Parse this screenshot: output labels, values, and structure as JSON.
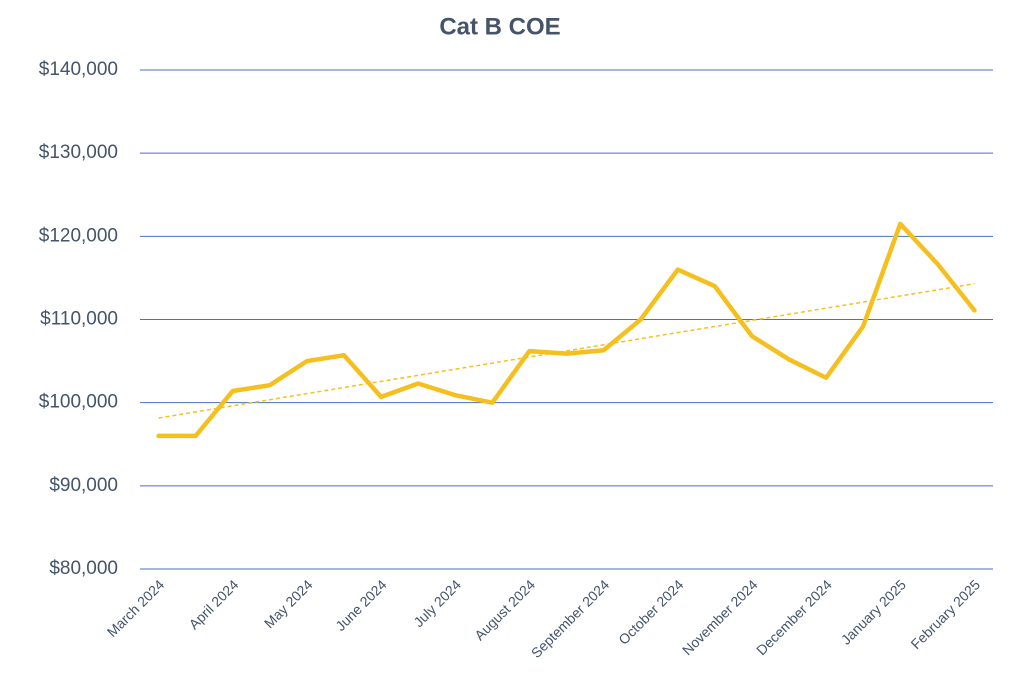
{
  "chart_data": {
    "type": "line",
    "title": "Cat B COE",
    "categories": [
      "March 2024",
      null,
      "April 2024",
      null,
      "May 2024",
      null,
      "June 2024",
      null,
      "July 2024",
      null,
      "August 2024",
      null,
      "September 2024",
      null,
      "October 2024",
      null,
      "November 2024",
      null,
      "December 2024",
      null,
      "January 2025",
      null,
      "February 2025"
    ],
    "series": [
      {
        "name": "Cat B COE",
        "color": "#f5c01f",
        "values": [
          96000,
          96000,
          101400,
          102100,
          105000,
          105700,
          100700,
          102300,
          100900,
          100000,
          106200,
          105900,
          106300,
          110000,
          116000,
          114000,
          108000,
          105200,
          103000,
          109200,
          121500,
          116700,
          111100
        ]
      }
    ],
    "ylim": [
      80000,
      140000
    ],
    "yticks": [
      {
        "value": 80000,
        "label": "$80,000"
      },
      {
        "value": 90000,
        "label": "$90,000"
      },
      {
        "value": 100000,
        "label": "$100,000"
      },
      {
        "value": 110000,
        "label": "$110,000"
      },
      {
        "value": 120000,
        "label": "$120,000"
      },
      {
        "value": 130000,
        "label": "$130,000"
      },
      {
        "value": 140000,
        "label": "$140,000"
      }
    ],
    "grid": true,
    "trendline": true
  }
}
